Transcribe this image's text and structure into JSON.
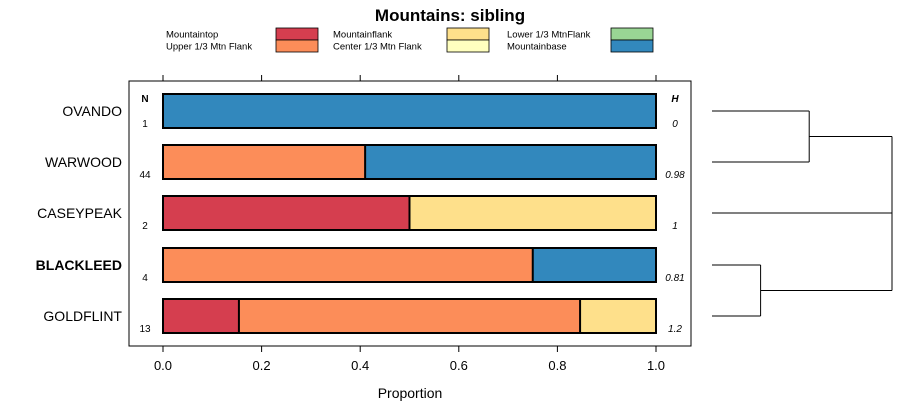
{
  "chart_data": {
    "type": "bar",
    "orientation": "horizontal",
    "stacked": true,
    "title": "Mountains: sibling",
    "xlabel": "Proportion",
    "xlim": [
      0,
      1
    ],
    "xticks": [
      "0.0",
      "0.2",
      "0.4",
      "0.6",
      "0.8",
      "1.0"
    ],
    "column_headers": {
      "n": "N",
      "h": "H"
    },
    "legend": [
      {
        "name": "Mountaintop",
        "color": "#d53e4f"
      },
      {
        "name": "Upper 1/3 Mtn Flank",
        "color": "#fc8d59"
      },
      {
        "name": "Mountainflank",
        "color": "#fee08b"
      },
      {
        "name": "Center 1/3 Mtn Flank",
        "color": "#ffffbf"
      },
      {
        "name": "Lower 1/3 MtnFlank",
        "color": "#99d594"
      },
      {
        "name": "Mountainbase",
        "color": "#3288bd"
      }
    ],
    "categories": [
      {
        "name": "OVANDO",
        "bold": false,
        "n": "1",
        "h": "0",
        "segments": [
          {
            "series": "Mountainbase",
            "value": 1.0
          }
        ]
      },
      {
        "name": "WARWOOD",
        "bold": false,
        "n": "44",
        "h": "0.98",
        "segments": [
          {
            "series": "Upper 1/3 Mtn Flank",
            "value": 0.41
          },
          {
            "series": "Mountainbase",
            "value": 0.59
          }
        ]
      },
      {
        "name": "CASEYPEAK",
        "bold": false,
        "n": "2",
        "h": "1",
        "segments": [
          {
            "series": "Mountaintop",
            "value": 0.5
          },
          {
            "series": "Mountainflank",
            "value": 0.5
          }
        ]
      },
      {
        "name": "BLACKLEED",
        "bold": true,
        "n": "4",
        "h": "0.81",
        "segments": [
          {
            "series": "Upper 1/3 Mtn Flank",
            "value": 0.75
          },
          {
            "series": "Mountainbase",
            "value": 0.25
          }
        ]
      },
      {
        "name": "GOLDFLINT",
        "bold": false,
        "n": "13",
        "h": "1.2",
        "segments": [
          {
            "series": "Mountaintop",
            "value": 0.154
          },
          {
            "series": "Upper 1/3 Mtn Flank",
            "value": 0.692
          },
          {
            "series": "Mountainflank",
            "value": 0.154
          }
        ]
      }
    ],
    "dendrogram": {
      "leaf_order": [
        "OVANDO",
        "WARWOOD",
        "CASEYPEAK",
        "BLACKLEED",
        "GOLDFLINT"
      ],
      "merges": [
        {
          "a": "OVANDO",
          "b": "WARWOOD",
          "height": 0.54
        },
        {
          "a": "BLACKLEED",
          "b": "GOLDFLINT",
          "height": 0.27
        },
        {
          "a": "OVANDO+WARWOOD",
          "b": "CASEYPEAK",
          "height": 1.0
        },
        {
          "a": "OVANDO+WARWOOD+CASEYPEAK",
          "b": "BLACKLEED+GOLDFLINT",
          "height": 1.0
        }
      ]
    }
  }
}
